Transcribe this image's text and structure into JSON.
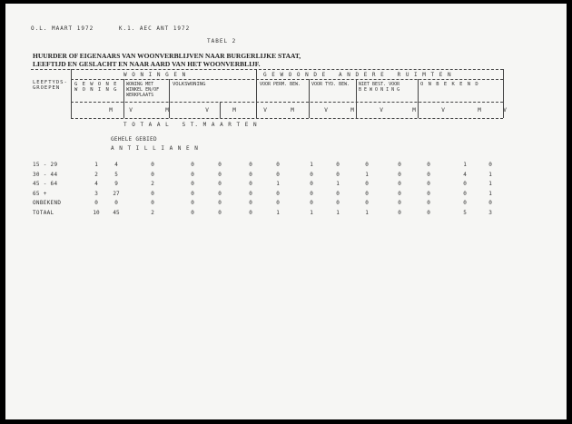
{
  "header_line": "O.L. MAART 1972      K.1. AEC ANT 1972",
  "table_label": "TABEL 2",
  "title_line1": "HUURDER OF EIGENAARS VAN WOONVERBLIJVEN NAAR BURGERLIJKE STAAT,",
  "title_line2": "LEEFTIJD EN GESLACHT EN NAAR AARD VAN HET WOONVERBLIJF.",
  "columns": {
    "age_group": "LEEFTYDS-\nGROEPEN",
    "group1": "W O N I N G E N",
    "group2": "G E W O O N D E   A N D E R E   R U I M T E N",
    "sub": [
      "G E W O N E\nW O N I N G",
      "WONING MET\nWINKEL EN/OF\nWERKPLAATS",
      "VOLKSWONING",
      "VOOR PERM. BEW.",
      "VOOR TYD. BEW.",
      "NIET BEST. VOOR\nB E W O N I N G",
      "O N B E K E N D"
    ],
    "sex": [
      "M",
      "V",
      "M",
      "V",
      "M",
      "V",
      "M",
      "V",
      "M",
      "V",
      "M",
      "V",
      "M",
      "V"
    ]
  },
  "section_title": "T O T A A L   S T. M A A R T E N",
  "subsection_title": "GEHELE GEBIED",
  "subsection_sub": "A N T I L L I A N E N",
  "rows": [
    {
      "label": "15 - 29",
      "values": [
        "1",
        "4",
        "0",
        "0",
        "0",
        "0",
        "0",
        "1",
        "0",
        "0",
        "0",
        "0",
        "1",
        "0"
      ]
    },
    {
      "label": "30 - 44",
      "values": [
        "2",
        "5",
        "0",
        "0",
        "0",
        "0",
        "0",
        "0",
        "0",
        "1",
        "0",
        "0",
        "4",
        "1"
      ]
    },
    {
      "label": "45 - 64",
      "values": [
        "4",
        "9",
        "2",
        "0",
        "0",
        "0",
        "1",
        "0",
        "1",
        "0",
        "0",
        "0",
        "0",
        "1"
      ]
    },
    {
      "label": "65 +",
      "values": [
        "3",
        "27",
        "0",
        "0",
        "0",
        "0",
        "0",
        "0",
        "0",
        "0",
        "0",
        "0",
        "0",
        "1"
      ]
    },
    {
      "label": "ONBEKEND",
      "values": [
        "0",
        "0",
        "0",
        "0",
        "0",
        "0",
        "0",
        "0",
        "0",
        "0",
        "0",
        "0",
        "0",
        "0"
      ]
    },
    {
      "label": "TOTAAL",
      "values": [
        "10",
        "45",
        "2",
        "0",
        "0",
        "0",
        "1",
        "1",
        "1",
        "1",
        "0",
        "0",
        "5",
        "3"
      ]
    }
  ]
}
